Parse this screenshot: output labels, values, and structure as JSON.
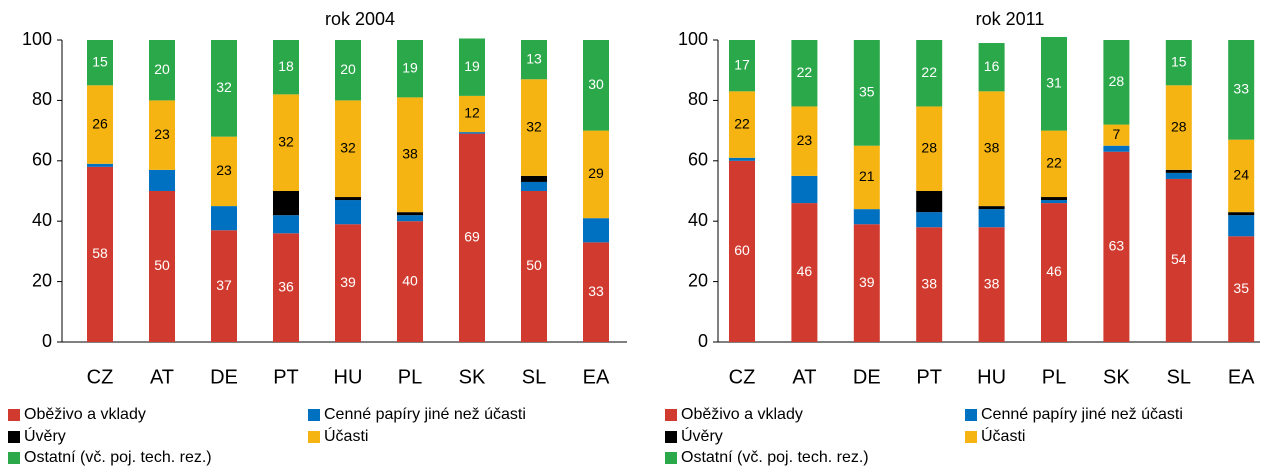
{
  "chart_data": [
    {
      "type": "bar",
      "stacked": true,
      "title": "rok 2004",
      "categories": [
        "CZ",
        "AT",
        "DE",
        "PT",
        "HU",
        "PL",
        "SK",
        "SL",
        "EA"
      ],
      "series": [
        {
          "name": "Oběživo a vklady",
          "color": "#d13b2f",
          "show_labels": true,
          "label_color": "#ffffff",
          "values": [
            58,
            50,
            37,
            36,
            39,
            40,
            69,
            50,
            33
          ]
        },
        {
          "name": "Cenné papíry jiné než účasti",
          "color": "#0070c0",
          "values": [
            1,
            7,
            8,
            6,
            8,
            2,
            0.5,
            3,
            8
          ]
        },
        {
          "name": "Úvěry",
          "color": "#000000",
          "values": [
            0,
            0,
            0,
            8,
            1,
            1,
            0,
            2,
            0
          ]
        },
        {
          "name": "Účasti",
          "color": "#f5b412",
          "show_labels": true,
          "label_color": "#000000",
          "values": [
            26,
            23,
            23,
            32,
            32,
            38,
            12,
            32,
            29
          ]
        },
        {
          "name": "Ostatní (vč. poj. tech. rez.)",
          "color": "#2aa84a",
          "show_labels": true,
          "label_color": "#ffffff",
          "values": [
            15,
            20,
            32,
            18,
            20,
            19,
            19,
            13,
            30
          ]
        }
      ],
      "ylim": [
        0,
        100
      ],
      "yticks": [
        0,
        20,
        40,
        60,
        80,
        100
      ]
    },
    {
      "type": "bar",
      "stacked": true,
      "title": "rok 2011",
      "categories": [
        "CZ",
        "AT",
        "DE",
        "PT",
        "HU",
        "PL",
        "SK",
        "SL",
        "EA"
      ],
      "series": [
        {
          "name": "Oběživo a vklady",
          "color": "#d13b2f",
          "show_labels": true,
          "label_color": "#ffffff",
          "values": [
            60,
            46,
            39,
            38,
            38,
            46,
            63,
            54,
            35
          ]
        },
        {
          "name": "Cenné papíry jiné než účasti",
          "color": "#0070c0",
          "values": [
            1,
            9,
            5,
            5,
            6,
            1,
            2,
            2,
            7
          ]
        },
        {
          "name": "Úvěry",
          "color": "#000000",
          "values": [
            0,
            0,
            0,
            7,
            1,
            1,
            0,
            1,
            1
          ]
        },
        {
          "name": "Účasti",
          "color": "#f5b412",
          "show_labels": true,
          "label_color": "#000000",
          "values": [
            22,
            23,
            21,
            28,
            38,
            22,
            7,
            28,
            24
          ]
        },
        {
          "name": "Ostatní (vč. poj. tech. rez.)",
          "color": "#2aa84a",
          "show_labels": true,
          "label_color": "#ffffff",
          "values": [
            17,
            22,
            35,
            22,
            16,
            31,
            28,
            15,
            33
          ]
        }
      ],
      "ylim": [
        0,
        100
      ],
      "yticks": [
        0,
        20,
        40,
        60,
        80,
        100
      ]
    }
  ]
}
